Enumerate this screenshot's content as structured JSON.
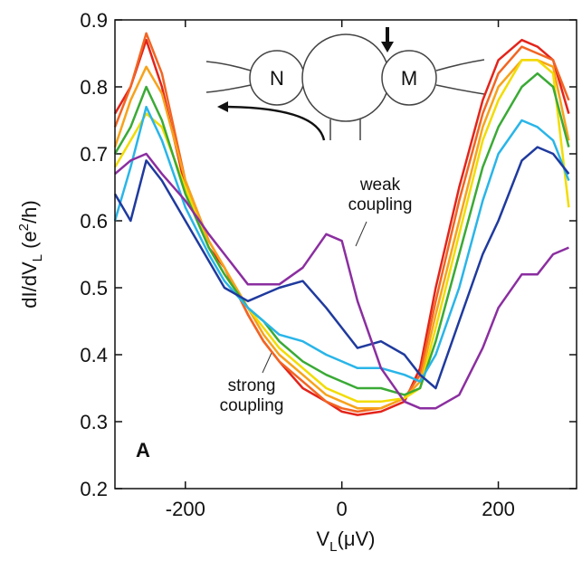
{
  "chart_data": {
    "type": "line",
    "x": [
      -290,
      -270,
      -250,
      -230,
      -200,
      -170,
      -150,
      -120,
      -100,
      -80,
      -50,
      -20,
      0,
      20,
      50,
      80,
      100,
      120,
      150,
      180,
      200,
      230,
      250,
      270,
      290
    ],
    "series": [
      {
        "color": "#e3241b",
        "values": [
          0.76,
          0.8,
          0.87,
          0.8,
          0.65,
          0.56,
          0.53,
          0.46,
          0.42,
          0.39,
          0.35,
          0.33,
          0.315,
          0.31,
          0.315,
          0.33,
          0.38,
          0.5,
          0.65,
          0.78,
          0.84,
          0.87,
          0.86,
          0.84,
          0.76
        ]
      },
      {
        "color": "#f26522",
        "values": [
          0.74,
          0.8,
          0.88,
          0.82,
          0.66,
          0.57,
          0.53,
          0.46,
          0.42,
          0.39,
          0.36,
          0.33,
          0.32,
          0.315,
          0.32,
          0.335,
          0.37,
          0.48,
          0.63,
          0.76,
          0.82,
          0.86,
          0.85,
          0.84,
          0.78
        ]
      },
      {
        "color": "#f7a21b",
        "values": [
          0.71,
          0.78,
          0.83,
          0.79,
          0.66,
          0.57,
          0.53,
          0.47,
          0.43,
          0.4,
          0.37,
          0.34,
          0.33,
          0.32,
          0.32,
          0.335,
          0.36,
          0.46,
          0.6,
          0.74,
          0.8,
          0.84,
          0.84,
          0.83,
          0.72
        ]
      },
      {
        "color": "#f2dc00",
        "values": [
          0.68,
          0.72,
          0.76,
          0.74,
          0.65,
          0.56,
          0.52,
          0.47,
          0.44,
          0.41,
          0.38,
          0.35,
          0.34,
          0.33,
          0.33,
          0.335,
          0.35,
          0.44,
          0.58,
          0.72,
          0.78,
          0.84,
          0.84,
          0.82,
          0.62
        ]
      },
      {
        "color": "#3aaa35",
        "values": [
          0.7,
          0.74,
          0.8,
          0.75,
          0.64,
          0.56,
          0.52,
          0.47,
          0.45,
          0.42,
          0.39,
          0.37,
          0.36,
          0.35,
          0.35,
          0.34,
          0.35,
          0.42,
          0.55,
          0.68,
          0.74,
          0.8,
          0.82,
          0.8,
          0.71
        ]
      },
      {
        "color": "#29b5e8",
        "values": [
          0.6,
          0.68,
          0.77,
          0.72,
          0.62,
          0.55,
          0.51,
          0.47,
          0.45,
          0.43,
          0.42,
          0.4,
          0.39,
          0.38,
          0.38,
          0.37,
          0.36,
          0.4,
          0.5,
          0.63,
          0.7,
          0.75,
          0.74,
          0.72,
          0.66
        ]
      },
      {
        "color": "#1f3a9e",
        "values": [
          0.64,
          0.6,
          0.69,
          0.66,
          0.6,
          0.54,
          0.5,
          0.48,
          0.49,
          0.5,
          0.51,
          0.47,
          0.44,
          0.41,
          0.42,
          0.4,
          0.37,
          0.35,
          0.45,
          0.55,
          0.6,
          0.69,
          0.71,
          0.7,
          0.67
        ]
      },
      {
        "color": "#8b2ea0",
        "values": [
          0.67,
          0.69,
          0.7,
          0.67,
          0.63,
          0.58,
          0.55,
          0.505,
          0.505,
          0.505,
          0.53,
          0.58,
          0.57,
          0.48,
          0.38,
          0.33,
          0.32,
          0.32,
          0.34,
          0.41,
          0.47,
          0.52,
          0.52,
          0.55,
          0.56
        ]
      }
    ],
    "xlim": [
      -290,
      300
    ],
    "xticks": [
      -200,
      0,
      200
    ],
    "ylim": [
      0.2,
      0.9
    ],
    "yticks": [
      0.2,
      0.3,
      0.4,
      0.5,
      0.6,
      0.7,
      0.8,
      0.9
    ],
    "xlabel": [
      "V",
      "L",
      "(μV)"
    ],
    "ylabel": [
      "dI/dV",
      "L",
      " (e",
      "2",
      "/h)"
    ],
    "annotations": [
      [
        "weak",
        "coupling"
      ],
      [
        "strong",
        "coupling"
      ]
    ],
    "panel_label": "A",
    "inset_labels": [
      "N",
      "M"
    ]
  }
}
